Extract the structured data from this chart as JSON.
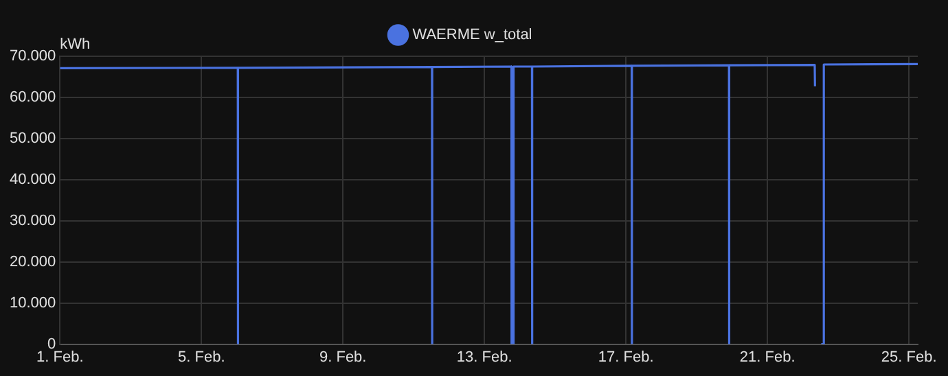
{
  "chart_data": {
    "type": "line",
    "ylabel": "kWh",
    "legend": "top",
    "grid": true,
    "marker": "none",
    "line_style": "solid",
    "xlim": [
      "--02-01T00:00",
      "--02-25T06:00"
    ],
    "xticks": [
      {
        "value": "--02-01",
        "label": "1. Feb."
      },
      {
        "value": "--02-05",
        "label": "5. Feb."
      },
      {
        "value": "--02-09",
        "label": "9. Feb."
      },
      {
        "value": "--02-13",
        "label": "13. Feb."
      },
      {
        "value": "--02-17",
        "label": "17. Feb."
      },
      {
        "value": "--02-21",
        "label": "21. Feb."
      },
      {
        "value": "--02-25",
        "label": "25. Feb."
      }
    ],
    "ylim": [
      0,
      70000
    ],
    "yticks": [
      {
        "value": 0,
        "label": "0"
      },
      {
        "value": 10000,
        "label": "10.000"
      },
      {
        "value": 20000,
        "label": "20.000"
      },
      {
        "value": 30000,
        "label": "30.000"
      },
      {
        "value": 40000,
        "label": "40.000"
      },
      {
        "value": 50000,
        "label": "50.000"
      },
      {
        "value": 60000,
        "label": "60.000"
      },
      {
        "value": 70000,
        "label": "70.000"
      }
    ],
    "series": [
      {
        "name": "WAERME w_total",
        "color": "#4a72e0",
        "x": [
          "--02-01T00:00",
          "--02-06T00:40",
          "--02-06T00:45",
          "--02-06T00:50",
          "--02-11T12:25",
          "--02-11T12:30",
          "--02-11T12:35",
          "--02-13T18:20",
          "--02-13T18:25",
          "--02-13T19:40",
          "--02-13T19:45",
          "--02-14T08:15",
          "--02-14T08:20",
          "--02-14T08:25",
          "--02-17T03:55",
          "--02-17T04:00",
          "--02-17T04:05",
          "--02-19T21:55",
          "--02-19T22:00",
          "--02-19T22:05",
          "--02-22T08:05",
          "--02-22T08:15",
          "--02-22T10:00",
          "--02-22T12:30",
          "--02-22T14:10",
          "--02-22T14:15",
          "--02-25T06:00"
        ],
        "values": [
          67100,
          67200,
          0,
          67200,
          67400,
          0,
          67400,
          67500,
          0,
          0,
          67500,
          67500,
          0,
          67500,
          67700,
          0,
          67700,
          67800,
          0,
          67800,
          67900,
          62700,
          null,
          0,
          0,
          68000,
          68100
        ]
      }
    ]
  }
}
